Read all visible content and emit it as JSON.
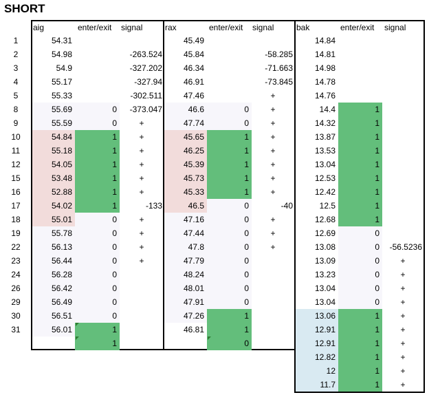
{
  "title": "SHORT",
  "colors": {
    "green": "#63be7b",
    "pink": "#f2dcdb",
    "lavender": "#f7f6fb",
    "lightblue": "#d9eaf2"
  },
  "row_labels": [
    "1",
    "2",
    "3",
    "4",
    "5",
    "8",
    "9",
    "10",
    "11",
    "12",
    "15",
    "16",
    "17",
    "18",
    "19",
    "22",
    "23",
    "24",
    "26",
    "29",
    "30",
    "31"
  ],
  "tables": [
    {
      "name": "aig",
      "headers": {
        "enter": "enter/exit",
        "signal": "signal"
      },
      "price_fill": [
        "",
        "",
        "",
        "",
        "",
        "lavender",
        "lavender",
        "pink",
        "pink",
        "pink",
        "pink",
        "pink",
        "pink",
        "pink",
        "lavender",
        "lavender",
        "lavender",
        "lavender",
        "lavender",
        "lavender",
        "lavender",
        "lavender",
        "",
        ""
      ],
      "flag_fill": [
        "",
        "",
        "",
        "",
        "",
        "lavender",
        "lavender",
        "green",
        "green",
        "green",
        "green",
        "green",
        "green",
        "lavender",
        "lavender",
        "lavender",
        "lavender",
        "lavender",
        "lavender",
        "lavender",
        "lavender",
        "green",
        "green"
      ],
      "price": [
        "54.31",
        "54.98",
        "54.9",
        "55.17",
        "55.33",
        "55.69",
        "55.59",
        "54.84",
        "55.18",
        "54.05",
        "53.48",
        "52.88",
        "54.02",
        "55.01",
        "55.78",
        "56.13",
        "56.44",
        "56.28",
        "56.42",
        "56.49",
        "56.51",
        "56.01",
        ""
      ],
      "flag": [
        "",
        "",
        "",
        "",
        "",
        "0",
        "0",
        "1",
        "1",
        "1",
        "1",
        "1",
        "1",
        "0",
        "0",
        "0",
        "0",
        "0",
        "0",
        "0",
        "0",
        "1",
        "1"
      ],
      "signal": [
        "",
        "-263.524",
        "-327.202",
        "-327.94",
        "-302.511",
        "-373.047",
        "+",
        "+",
        "+",
        "+",
        "+",
        "+",
        "-133",
        "+",
        "+",
        "+",
        "+",
        "",
        "",
        "",
        "",
        "",
        ""
      ]
    },
    {
      "name": "rax",
      "headers": {
        "enter": "enter/exit",
        "signal": "signal"
      },
      "price_fill": [
        "",
        "",
        "",
        "",
        "",
        "lavender",
        "lavender",
        "pink",
        "pink",
        "pink",
        "pink",
        "pink",
        "pink",
        "lavender",
        "lavender",
        "lavender",
        "lavender",
        "lavender",
        "lavender",
        "lavender",
        "lavender",
        "",
        ""
      ],
      "flag_fill": [
        "",
        "",
        "",
        "",
        "",
        "lavender",
        "lavender",
        "green",
        "green",
        "green",
        "green",
        "green",
        "lavender",
        "lavender",
        "lavender",
        "lavender",
        "lavender",
        "lavender",
        "lavender",
        "lavender",
        "green",
        "green",
        "green"
      ],
      "price": [
        "45.49",
        "45.84",
        "46.34",
        "46.91",
        "47.46",
        "46.6",
        "47.74",
        "45.65",
        "46.25",
        "45.39",
        "45.73",
        "45.33",
        "46.5",
        "47.16",
        "47.44",
        "47.8",
        "47.79",
        "48.24",
        "48.01",
        "47.91",
        "47.26",
        "46.81",
        ""
      ],
      "flag": [
        "",
        "",
        "",
        "",
        "",
        "0",
        "0",
        "1",
        "1",
        "1",
        "1",
        "1",
        "0",
        "0",
        "0",
        "0",
        "0",
        "0",
        "0",
        "0",
        "1",
        "1",
        "0"
      ],
      "signal": [
        "",
        "-58.285",
        "-71.663",
        "-73.845",
        "+",
        "+",
        "+",
        "+",
        "+",
        "+",
        "+",
        "+",
        "-40",
        "+",
        "+",
        "+",
        "",
        "",
        "",
        "",
        "",
        "",
        ""
      ]
    },
    {
      "name": "bak",
      "headers": {
        "enter": "enter/exit",
        "signal": "signal"
      },
      "price_fill": [
        "",
        "",
        "",
        "",
        "",
        "",
        "",
        "",
        "",
        "",
        "",
        "",
        "",
        "",
        "",
        "",
        "",
        "",
        "",
        "",
        "lightblue",
        "lightblue",
        "lightblue",
        "lightblue",
        "lightblue",
        "lightblue"
      ],
      "flag_fill": [
        "",
        "",
        "",
        "",
        "",
        "green",
        "green",
        "green",
        "green",
        "green",
        "green",
        "green",
        "green",
        "green",
        "lavender",
        "lavender",
        "lavender",
        "lavender",
        "lavender",
        "lavender",
        "green",
        "green",
        "green",
        "green",
        "green",
        "green"
      ],
      "price": [
        "14.84",
        "14.81",
        "14.98",
        "14.78",
        "14.76",
        "14.4",
        "14.32",
        "13.87",
        "13.53",
        "13.04",
        "12.53",
        "12.42",
        "12.5",
        "12.68",
        "12.69",
        "13.08",
        "13.09",
        "13.23",
        "13.04",
        "13.04",
        "13.06",
        "12.91",
        "12.91",
        "12.82",
        "12",
        "11.7"
      ],
      "flag": [
        "",
        "",
        "",
        "",
        "",
        "1",
        "1",
        "1",
        "1",
        "1",
        "1",
        "1",
        "1",
        "1",
        "0",
        "0",
        "0",
        "0",
        "0",
        "0",
        "1",
        "1",
        "1",
        "1",
        "1",
        "1"
      ],
      "signal": [
        "",
        "",
        "",
        "",
        "",
        "",
        "",
        "",
        "",
        "",
        "",
        "",
        "",
        "",
        "",
        "-56.5236",
        "+",
        "+",
        "+",
        "+",
        "+",
        "+",
        "+",
        "+",
        "+",
        "+"
      ]
    }
  ]
}
